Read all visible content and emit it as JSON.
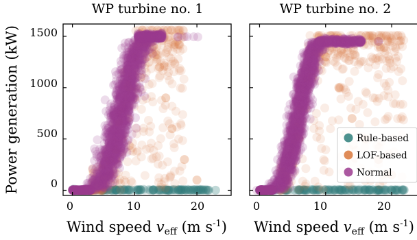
{
  "chart_data": [
    {
      "type": "scatter",
      "title": "WP turbine no. 1",
      "xlabel": "Wind speed v_eff (m s^-1)",
      "ylabel": "Power generation (kW)",
      "xlim": [
        -1.5,
        25.5
      ],
      "ylim": [
        -50,
        1620
      ],
      "xticks": [
        0,
        10,
        20
      ],
      "yticks": [
        0,
        500,
        1000,
        1500
      ],
      "rated_power": 1500,
      "cut_in_speed": 3,
      "series": [
        {
          "name": "Rule-based",
          "color": "#2e7e7a",
          "x": [
            0.2,
            1.5,
            3,
            5,
            7,
            9,
            11,
            13,
            15,
            17,
            19,
            21,
            23
          ],
          "y": [
            0,
            0,
            0,
            3,
            5,
            5,
            5,
            4,
            3,
            3,
            2,
            2,
            1
          ]
        },
        {
          "name": "LOF-based",
          "color": "#d9773a",
          "x": [
            4,
            5,
            6,
            7,
            8,
            9,
            10,
            11,
            12,
            13,
            14,
            15,
            16,
            18,
            20
          ],
          "y": [
            20,
            60,
            150,
            300,
            500,
            700,
            900,
            1100,
            1300,
            1400,
            1200,
            900,
            600,
            300,
            100
          ]
        },
        {
          "name": "Normal",
          "color": "#9c3b8f",
          "x": [
            0,
            2,
            3,
            4,
            5,
            6,
            7,
            8,
            9,
            10,
            11,
            12,
            13
          ],
          "y": [
            0,
            0,
            5,
            40,
            130,
            300,
            530,
            800,
            1080,
            1300,
            1440,
            1480,
            1490
          ]
        }
      ]
    },
    {
      "type": "scatter",
      "title": "WP turbine no. 2",
      "xlabel": "Wind speed v_eff (m s^-1)",
      "ylabel": "",
      "xlim": [
        -1.5,
        25.5
      ],
      "ylim": [
        -50,
        1620
      ],
      "xticks": [
        0,
        10,
        20
      ],
      "yticks": [
        0,
        500,
        1000,
        1500
      ],
      "rated_power": 1450,
      "cut_in_speed": 2,
      "legend_position": "lower-right",
      "series": [
        {
          "name": "Rule-based",
          "color": "#2e7e7a",
          "x": [
            0,
            2,
            4,
            6,
            8,
            10,
            12,
            14,
            16,
            18,
            20
          ],
          "y": [
            0,
            0,
            2,
            5,
            6,
            6,
            6,
            5,
            4,
            3,
            2
          ]
        },
        {
          "name": "LOF-based",
          "color": "#d9773a",
          "x": [
            3,
            4,
            5,
            6,
            7,
            8,
            9,
            10,
            12,
            14,
            16,
            18,
            20
          ],
          "y": [
            20,
            100,
            250,
            500,
            800,
            1100,
            1350,
            1300,
            1000,
            700,
            500,
            300,
            150
          ]
        },
        {
          "name": "Normal",
          "color": "#9c3b8f",
          "x": [
            0,
            1,
            2,
            3,
            4,
            5,
            6,
            7,
            8,
            9,
            10,
            14,
            18
          ],
          "y": [
            0,
            0,
            2,
            30,
            180,
            450,
            780,
            1100,
            1350,
            1450,
            1450,
            1450,
            1450
          ]
        }
      ]
    }
  ],
  "legend": [
    {
      "label": "Rule-based",
      "color": "#2e7e7a"
    },
    {
      "label": "LOF-based",
      "color": "#d9773a"
    },
    {
      "label": "Normal",
      "color": "#9c3b8f"
    }
  ],
  "labels": {
    "panel1_title": "WP turbine no. 1",
    "panel2_title": "WP turbine no. 2",
    "ylabel": "Power generation (kW)",
    "xlabel_prefix": "Wind speed ",
    "xlabel_var": "v",
    "xlabel_sub": "eff",
    "xlabel_units": " (m s",
    "xlabel_exp": "-1",
    "xlabel_close": ")",
    "x_ticks": [
      "0",
      "10",
      "20"
    ],
    "y_ticks": [
      "0",
      "500",
      "1000",
      "1500"
    ]
  }
}
